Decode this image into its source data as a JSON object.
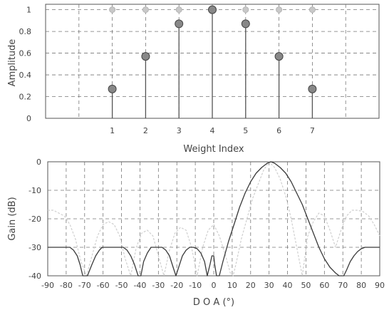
{
  "chart_data": [
    {
      "type": "stem",
      "xlabel": "Weight Index",
      "ylabel": "Amplitude",
      "xlim": [
        -1,
        9
      ],
      "ylim": [
        0,
        1.05
      ],
      "xticks": [
        "1",
        "2",
        "3",
        "4",
        "5",
        "6",
        "7"
      ],
      "yticks": [
        "0",
        "0.2",
        "0.4",
        "0.6",
        "0.8",
        "1"
      ],
      "grid": true,
      "series": [
        {
          "x": [
            1,
            2,
            3,
            4,
            5,
            6,
            7
          ],
          "values": [
            1,
            1,
            1,
            1,
            1,
            1,
            1
          ],
          "color": "#c8c8c8",
          "style": "markers-only"
        },
        {
          "x": [
            1,
            2,
            3,
            4,
            5,
            6,
            7
          ],
          "values": [
            0.27,
            0.57,
            0.87,
            1.0,
            0.87,
            0.57,
            0.27
          ],
          "color": "#888888",
          "style": "stem"
        }
      ]
    },
    {
      "type": "line",
      "xlabel": "D O A  (°)",
      "ylabel": "Gain (dB)",
      "xlim": [
        -90,
        90
      ],
      "ylim": [
        -40,
        0
      ],
      "xticks": [
        "-90",
        "-80",
        "-70",
        "-60",
        "-50",
        "-40",
        "-30",
        "-20",
        "-10",
        "0",
        "10",
        "20",
        "30",
        "40",
        "50",
        "60",
        "70",
        "80",
        "90"
      ],
      "yticks": [
        "0",
        "-10",
        "-20",
        "-30",
        "-40"
      ],
      "grid": true,
      "series": [
        {
          "color": "#cfcfcf",
          "x": [
            -90,
            -87,
            -84,
            -81,
            -78,
            -75,
            -72,
            -69,
            -66,
            -63,
            -60,
            -57,
            -54,
            -51,
            -48,
            -45,
            -42,
            -39,
            -36,
            -33,
            -30,
            -27,
            -24,
            -21,
            -18,
            -15,
            -12,
            -9,
            -6,
            -3,
            0,
            3,
            6,
            9,
            10.5,
            12,
            15,
            18,
            21,
            24,
            27,
            30,
            33,
            36,
            39,
            42,
            45,
            48,
            51,
            54,
            57,
            60,
            63,
            66,
            69,
            72,
            75,
            78,
            81,
            84,
            87,
            90
          ],
          "y": [
            -17,
            -17,
            -18,
            -19,
            -22,
            -27,
            -35,
            -40,
            -33,
            -26,
            -22,
            -21,
            -22,
            -26,
            -34,
            -40,
            -30,
            -25,
            -24,
            -26,
            -33,
            -40,
            -31,
            -25,
            -23,
            -24,
            -30,
            -40,
            -30,
            -24,
            -22,
            -26,
            -32,
            -39,
            -40,
            -36,
            -27,
            -20,
            -13,
            -8,
            -3,
            0,
            -2,
            -6,
            -12,
            -20,
            -30,
            -40,
            -26,
            -21,
            -18,
            -19,
            -24,
            -30,
            -24,
            -19,
            -17,
            -17,
            -17.5,
            -19,
            -22,
            -26
          ]
        },
        {
          "color": "#3a3a3a",
          "x": [
            -90,
            -86,
            -82,
            -80,
            -78,
            -76,
            -74,
            -72.5,
            -71,
            -68.5,
            -66,
            -64,
            -62,
            -60.5,
            -59,
            -57,
            -55,
            -53,
            -51,
            -49,
            -47,
            -45,
            -43,
            -41,
            -39.5,
            -38,
            -36,
            -34,
            -32,
            -30,
            -28,
            -26,
            -24,
            -22,
            -20.5,
            -19,
            -17,
            -15,
            -13,
            -11,
            -9,
            -7,
            -5,
            -3.5,
            -2,
            -1,
            0,
            0.5,
            1.5,
            3,
            5,
            8,
            11,
            14,
            17,
            20,
            23,
            26,
            29,
            31,
            33,
            36,
            39,
            42,
            45,
            48,
            51,
            54,
            57,
            60,
            63,
            66,
            68,
            69.5,
            70.5,
            72,
            74,
            76,
            78,
            80,
            82,
            84,
            86,
            88,
            90
          ],
          "y": [
            -30,
            -30,
            -30,
            -30,
            -30,
            -31,
            -33,
            -36,
            -40,
            -40,
            -36,
            -33,
            -31,
            -30,
            -30,
            -30,
            -30,
            -30,
            -30,
            -30,
            -31,
            -33,
            -36,
            -40,
            -40,
            -35,
            -32,
            -30,
            -30,
            -30,
            -30,
            -31,
            -33,
            -37,
            -40,
            -37,
            -33,
            -31,
            -30,
            -30,
            -30.5,
            -32,
            -35,
            -40,
            -36,
            -33,
            -33,
            -36,
            -40,
            -40,
            -35,
            -28,
            -22,
            -16,
            -11,
            -7,
            -4,
            -2,
            -0.5,
            0,
            -0.5,
            -2,
            -4,
            -7,
            -11,
            -15,
            -20,
            -25,
            -30,
            -34,
            -37,
            -39,
            -40,
            -40,
            -40,
            -38,
            -35,
            -33,
            -31.5,
            -30.5,
            -30,
            -30,
            -30,
            -30,
            -30
          ]
        }
      ]
    }
  ]
}
